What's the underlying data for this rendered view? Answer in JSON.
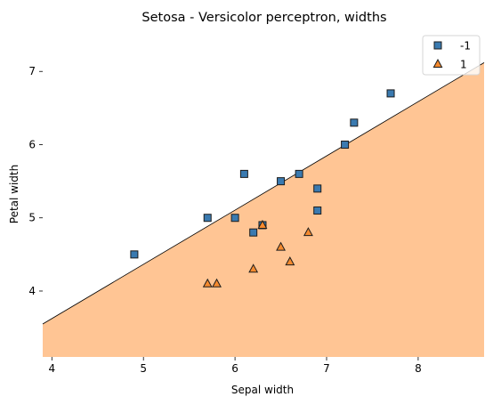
{
  "chart_data": {
    "type": "scatter",
    "title": "Setosa - Versicolor perceptron, widths",
    "xlabel": "Sepal width",
    "ylabel": "Petal width",
    "xlim": [
      3.9,
      8.72
    ],
    "ylim": [
      3.1,
      7.55
    ],
    "x_ticks": [
      "4",
      "5",
      "6",
      "7",
      "8"
    ],
    "y_ticks": [
      "4",
      "5",
      "6",
      "7"
    ],
    "grid": false,
    "legend_position": "top-right",
    "decision_boundary": {
      "x": [
        3.9,
        8.72
      ],
      "y": [
        3.55,
        7.12
      ],
      "region_below_class": "1",
      "region_color": "#ffc594"
    },
    "series": [
      {
        "name": "-1",
        "marker": "square",
        "color": "#3a7ab0",
        "points": [
          {
            "x": 4.9,
            "y": 4.5
          },
          {
            "x": 5.7,
            "y": 5.0
          },
          {
            "x": 6.0,
            "y": 5.0
          },
          {
            "x": 6.1,
            "y": 5.6
          },
          {
            "x": 6.2,
            "y": 4.8
          },
          {
            "x": 6.3,
            "y": 4.9
          },
          {
            "x": 6.5,
            "y": 5.5
          },
          {
            "x": 6.7,
            "y": 5.6
          },
          {
            "x": 6.9,
            "y": 5.4
          },
          {
            "x": 6.9,
            "y": 5.1
          },
          {
            "x": 7.2,
            "y": 6.0
          },
          {
            "x": 7.3,
            "y": 6.3
          },
          {
            "x": 7.7,
            "y": 6.7
          }
        ]
      },
      {
        "name": "1",
        "marker": "triangle",
        "color": "#f58a2e",
        "points": [
          {
            "x": 5.7,
            "y": 4.1
          },
          {
            "x": 5.8,
            "y": 4.1
          },
          {
            "x": 6.2,
            "y": 4.3
          },
          {
            "x": 6.3,
            "y": 4.9
          },
          {
            "x": 6.5,
            "y": 4.6
          },
          {
            "x": 6.6,
            "y": 4.4
          },
          {
            "x": 6.8,
            "y": 4.8
          }
        ]
      }
    ]
  }
}
